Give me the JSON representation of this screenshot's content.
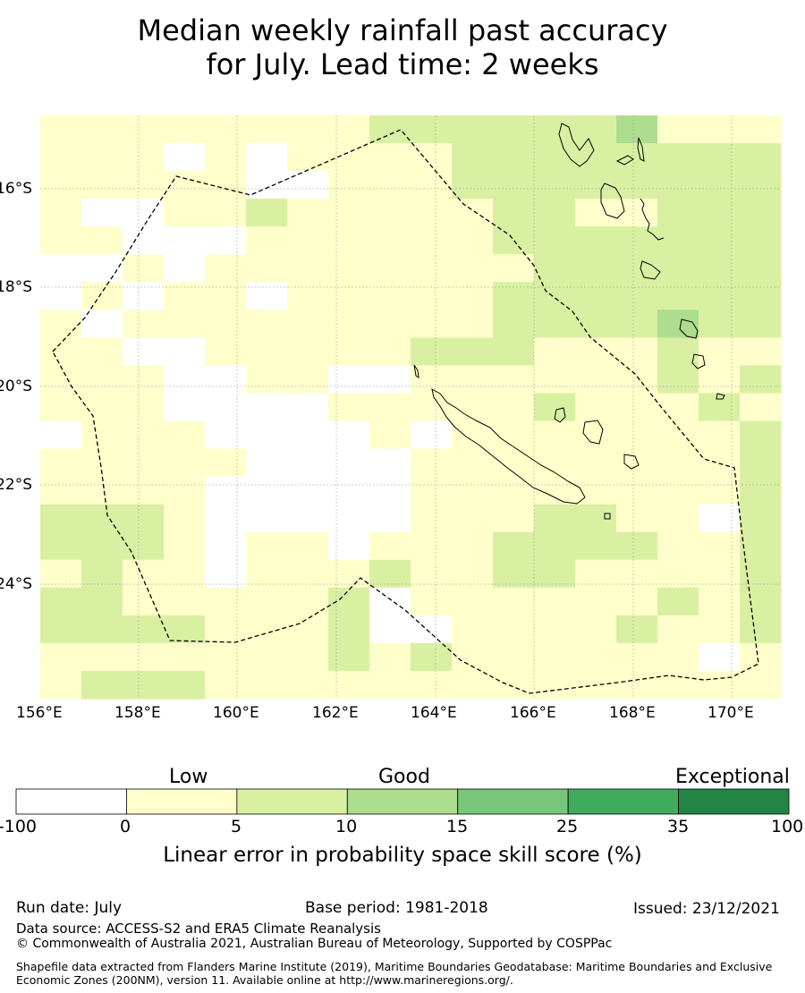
{
  "title_line1": "Median weekly rainfall past accuracy",
  "title_line2": "for July. Lead time: 2 weeks",
  "map": {
    "lon_labels": [
      "156°E",
      "158°E",
      "160°E",
      "162°E",
      "164°E",
      "166°E",
      "168°E",
      "170°E"
    ],
    "lat_labels": [
      "16°S",
      "18°S",
      "20°S",
      "22°S",
      "24°S"
    ],
    "grid_cols": 18,
    "grid_rows": 21,
    "grid_codes": [
      "111111112222223111",
      "111010111122222222",
      "111110011122222222",
      "100112111112211222",
      "110001111112222222",
      "001011111111222222",
      "010110111112222222",
      "101111111112222322",
      "110011111222111211",
      "111001100111111212",
      "111000011111211121",
      "011100001011111112",
      "111110000111111112",
      "111100000111111112",
      "222100000111221102",
      "222101101112222112",
      "121101112112211112",
      "221111120111111212",
      "222211120011112112",
      "111111121211111101",
      "122211111111111111"
    ],
    "color_scale": [
      "#ffffff",
      "#ffffcc",
      "#d9f0a3",
      "#addd8e",
      "#78c679",
      "#41ab5d",
      "#238443"
    ]
  },
  "colorbar": {
    "category_labels": [
      "Low",
      "Good",
      "Exceptional"
    ],
    "tick_labels": [
      "-100",
      "0",
      "5",
      "10",
      "15",
      "25",
      "35",
      "100"
    ],
    "colors": [
      "#ffffff",
      "#ffffcc",
      "#d9f0a3",
      "#addd8e",
      "#78c679",
      "#41ab5d",
      "#238443"
    ],
    "axis_label": "Linear error in probability space skill score (%)"
  },
  "footer": {
    "run_date": "Run date: July",
    "base_period": "Base period: 1981-2018",
    "issued": "Issued: 23/12/2021",
    "data_source": "Data source: ACCESS-S2 and ERA5 Climate Reanalysis",
    "copyright": "© Commonwealth of Australia 2021, Australian Bureau of Meteorology, Supported by COSPPac",
    "shapefile_note": "Shapefile data extracted from Flanders Marine Institute (2019), Maritime Boundaries Geodatabase: Maritime Boundaries and Exclusive Economic Zones (200NM), version 11. Available online at http://www.marineregions.org/."
  }
}
